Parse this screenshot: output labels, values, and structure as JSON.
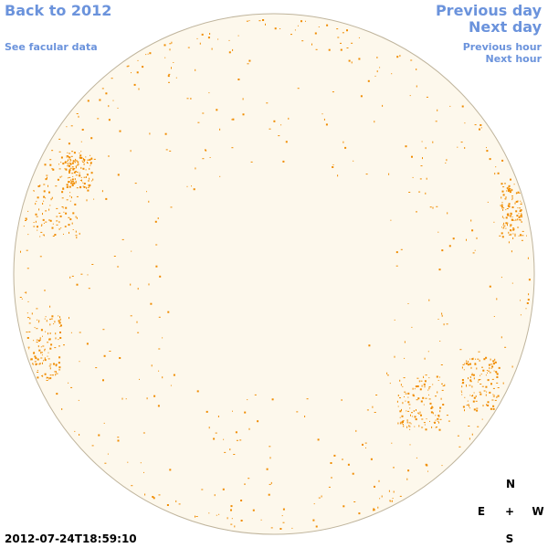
{
  "links": {
    "back": "Back to 2012",
    "facular": "See facular data",
    "previous_day": "Previous day",
    "next_day": "Next day",
    "previous_hour": "Previous hour",
    "next_hour": "Next hour"
  },
  "timestamp": "2012-07-24T18:59:10",
  "compass": {
    "north": "N",
    "east": "E",
    "center": "+",
    "west": "W",
    "south": "S"
  }
}
